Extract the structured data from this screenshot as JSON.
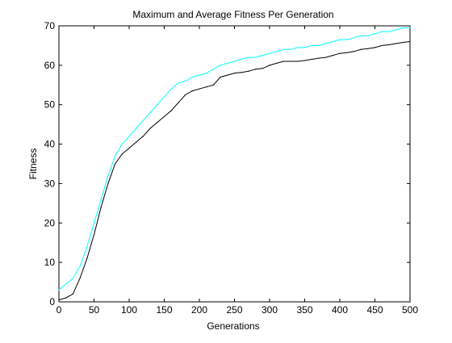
{
  "chart_data": {
    "type": "line",
    "title": "Maximum and Average Fitness Per Generation",
    "xlabel": "Generations",
    "ylabel": "Fitness",
    "xlim": [
      0,
      500
    ],
    "ylim": [
      0,
      70
    ],
    "xticks": [
      0,
      50,
      100,
      150,
      200,
      250,
      300,
      350,
      400,
      450,
      500
    ],
    "yticks": [
      0,
      10,
      20,
      30,
      40,
      50,
      60,
      70
    ],
    "grid": false,
    "legend": "none",
    "series": [
      {
        "role": "maximum",
        "color": "#00ffff",
        "x": [
          0,
          10,
          20,
          30,
          40,
          50,
          60,
          70,
          80,
          90,
          100,
          110,
          120,
          130,
          140,
          150,
          160,
          170,
          180,
          190,
          200,
          210,
          220,
          230,
          240,
          250,
          260,
          270,
          280,
          290,
          300,
          310,
          320,
          330,
          340,
          350,
          360,
          370,
          380,
          390,
          400,
          410,
          420,
          430,
          440,
          450,
          460,
          470,
          480,
          490,
          500
        ],
        "values": [
          3,
          4.5,
          6,
          9,
          14,
          20,
          26,
          32,
          37,
          40,
          42,
          44,
          46,
          48,
          50,
          52,
          54,
          55.5,
          56,
          57,
          57.5,
          58,
          59,
          60,
          60.5,
          61,
          61.5,
          62,
          62,
          62.5,
          63,
          63.5,
          64,
          64,
          64.5,
          64.5,
          65,
          65,
          65.5,
          66,
          66.5,
          66.5,
          67,
          67.5,
          67.5,
          68,
          68.5,
          68.5,
          69,
          69.5,
          69.5
        ]
      },
      {
        "role": "average",
        "color": "#000000",
        "x": [
          0,
          10,
          20,
          30,
          40,
          50,
          60,
          70,
          80,
          90,
          100,
          110,
          120,
          130,
          140,
          150,
          160,
          170,
          180,
          190,
          200,
          210,
          220,
          230,
          240,
          250,
          260,
          270,
          280,
          290,
          300,
          310,
          320,
          330,
          340,
          350,
          360,
          370,
          380,
          390,
          400,
          410,
          420,
          430,
          440,
          450,
          460,
          470,
          480,
          490,
          500
        ],
        "values": [
          0.5,
          1,
          2,
          6,
          11,
          17,
          24,
          30,
          35,
          37.5,
          39,
          40.5,
          42,
          44,
          45.5,
          47,
          48.5,
          50.5,
          52.5,
          53.5,
          54,
          54.5,
          55,
          57,
          57.5,
          58,
          58.2,
          58.5,
          59,
          59.2,
          60,
          60.5,
          61,
          61,
          61,
          61.2,
          61.5,
          61.8,
          62,
          62.5,
          63,
          63.2,
          63.5,
          64,
          64.2,
          64.5,
          65,
          65.2,
          65.5,
          65.8,
          66
        ]
      }
    ]
  }
}
